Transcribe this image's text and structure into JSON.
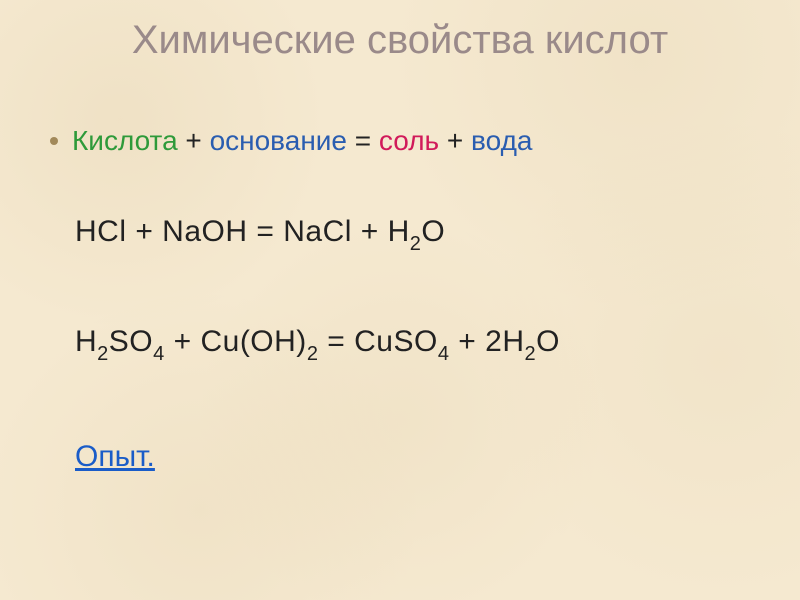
{
  "title": {
    "text": "Химические свойства кислот",
    "color": "#9a8a8a",
    "fontsize": 40
  },
  "bullet_line": {
    "parts": [
      {
        "text": "Кислота",
        "color": "#2e9a3a"
      },
      {
        "text": " + ",
        "color": "#222222"
      },
      {
        "text": "основание",
        "color": "#2a5db0"
      },
      {
        "text": " = ",
        "color": "#222222"
      },
      {
        "text": "соль",
        "color": "#d11a5a"
      },
      {
        "text": " + ",
        "color": "#222222"
      },
      {
        "text": "вода",
        "color": "#2a5db0"
      }
    ],
    "fontsize": 28,
    "bullet_color": "#a2895a"
  },
  "equations": [
    {
      "tokens": [
        {
          "t": "HCl + NaOH  =   NaCl + H"
        },
        {
          "t": "2",
          "sub": true
        },
        {
          "t": "O"
        }
      ]
    },
    {
      "tokens": [
        {
          "t": "H"
        },
        {
          "t": "2",
          "sub": true
        },
        {
          "t": "SO"
        },
        {
          "t": "4",
          "sub": true
        },
        {
          "t": " + Cu(OH)"
        },
        {
          "t": "2",
          "sub": true
        },
        {
          "t": " =   CuSO"
        },
        {
          "t": "4",
          "sub": true
        },
        {
          "t": " + 2H"
        },
        {
          "t": "2",
          "sub": true
        },
        {
          "t": "O"
        }
      ]
    }
  ],
  "equation_style": {
    "color": "#222222",
    "fontsize": 30
  },
  "link": {
    "text": "Опыт.",
    "color": "#1a5cc8",
    "fontsize": 30
  },
  "background_color": "#f5e9d0"
}
